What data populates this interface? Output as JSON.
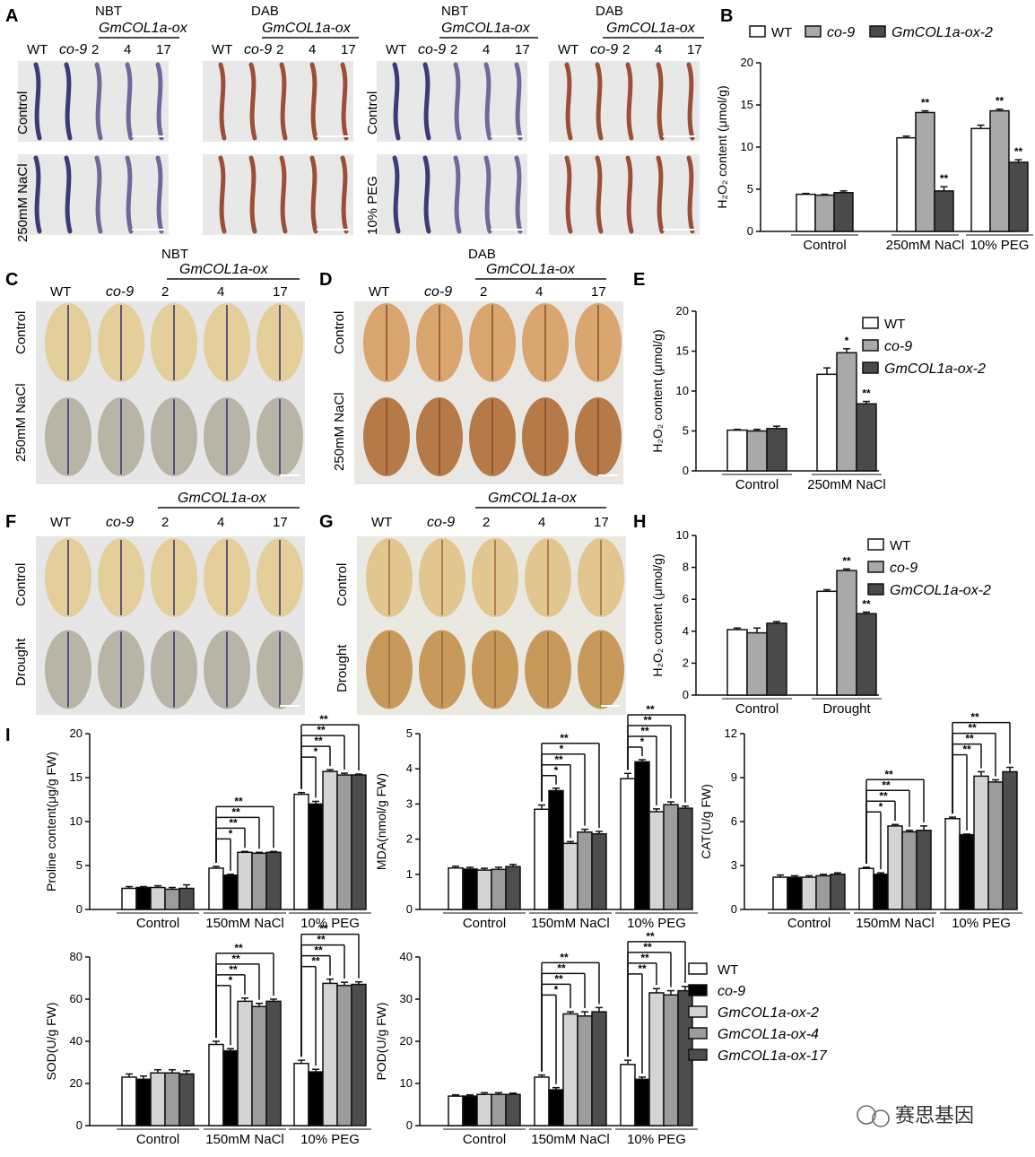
{
  "panel_labels": {
    "A": "A",
    "B": "B",
    "C": "C",
    "D": "D",
    "E": "E",
    "F": "F",
    "G": "G",
    "H": "H",
    "I": "I"
  },
  "panelA": {
    "stain_left_1": "NBT",
    "stain_left_2": "DAB",
    "stain_right_1": "NBT",
    "stain_right_2": "DAB",
    "construct": "GmCOL1a-ox",
    "genotypes": [
      "WT",
      "co-9",
      "2",
      "4",
      "17"
    ],
    "row_left": [
      "Control",
      "250mM NaCl"
    ],
    "row_right": [
      "Control",
      "10% PEG"
    ]
  },
  "panelC": {
    "stain": "NBT",
    "construct": "GmCOL1a-ox",
    "genotypes": [
      "WT",
      "co-9",
      "2",
      "4",
      "17"
    ],
    "rows": [
      "Control",
      "250mM NaCl"
    ]
  },
  "panelD": {
    "stain": "DAB",
    "construct": "GmCOL1a-ox",
    "genotypes": [
      "WT",
      "co-9",
      "2",
      "4",
      "17"
    ],
    "rows": [
      "Control",
      "250mM NaCl"
    ]
  },
  "panelF": {
    "construct": "GmCOL1a-ox",
    "genotypes": [
      "WT",
      "co-9",
      "2",
      "4",
      "17"
    ],
    "rows": [
      "Control",
      "Drought"
    ]
  },
  "panelG": {
    "construct": "GmCOL1a-ox",
    "genotypes": [
      "WT",
      "co-9",
      "2",
      "4",
      "17"
    ],
    "rows": [
      "Control",
      "Drought"
    ]
  },
  "legend3": [
    {
      "name": "WT",
      "color": "#ffffff",
      "italic": false
    },
    {
      "name": "co-9",
      "color": "#a9a9a9",
      "italic": true
    },
    {
      "name": "GmCOL1a-ox-2",
      "color": "#4a4a4a",
      "italic": true
    }
  ],
  "legend5": [
    {
      "name": "WT",
      "color": "#ffffff",
      "italic": false
    },
    {
      "name": "co-9",
      "color": "#000000",
      "italic": true
    },
    {
      "name": "GmCOL1a-ox-2",
      "color": "#d4d4d4",
      "italic": true
    },
    {
      "name": "GmCOL1a-ox-4",
      "color": "#9c9c9c",
      "italic": true
    },
    {
      "name": "GmCOL1a-ox-17",
      "color": "#4d4d4d",
      "italic": true
    }
  ],
  "watermark": "赛思基因",
  "chart_data": [
    {
      "id": "B",
      "type": "bar",
      "categories": [
        "Control",
        "250mM NaCl",
        "10% PEG"
      ],
      "ylabel": "H₂O₂ content (μmol/g)",
      "ylim": [
        0,
        20
      ],
      "yticks": [
        0,
        5,
        10,
        15,
        20
      ],
      "series": [
        {
          "name": "WT",
          "values": [
            4.4,
            11.1,
            12.2
          ],
          "err": [
            0.1,
            0.2,
            0.4
          ],
          "stars": [
            "",
            "",
            ""
          ]
        },
        {
          "name": "co-9",
          "values": [
            4.3,
            14.1,
            14.3
          ],
          "err": [
            0.1,
            0.2,
            0.2
          ],
          "stars": [
            "",
            "**",
            "**"
          ]
        },
        {
          "name": "GmCOL1a-ox-2",
          "values": [
            4.6,
            4.8,
            8.2
          ],
          "err": [
            0.2,
            0.5,
            0.3
          ],
          "stars": [
            "",
            "**",
            "**"
          ]
        }
      ]
    },
    {
      "id": "E",
      "type": "bar",
      "categories": [
        "Control",
        "250mM NaCl"
      ],
      "ylabel": "H₂O₂ content (μmol/g)",
      "ylim": [
        0,
        20
      ],
      "yticks": [
        0,
        5,
        10,
        15,
        20
      ],
      "series": [
        {
          "name": "WT",
          "values": [
            5.1,
            12.1
          ],
          "err": [
            0.1,
            0.8
          ],
          "stars": [
            "",
            ""
          ]
        },
        {
          "name": "co-9",
          "values": [
            5.0,
            14.8
          ],
          "err": [
            0.2,
            0.5
          ],
          "stars": [
            "",
            "*"
          ]
        },
        {
          "name": "GmCOL1a-ox-2",
          "values": [
            5.3,
            8.4
          ],
          "err": [
            0.3,
            0.3
          ],
          "stars": [
            "",
            "**"
          ]
        }
      ]
    },
    {
      "id": "H",
      "type": "bar",
      "categories": [
        "Control",
        "Drought"
      ],
      "ylabel": "H₂O₂ content (μmol/g)",
      "ylim": [
        0,
        10
      ],
      "yticks": [
        0,
        2,
        4,
        6,
        8,
        10
      ],
      "series": [
        {
          "name": "WT",
          "values": [
            4.1,
            6.5
          ],
          "err": [
            0.1,
            0.1
          ],
          "stars": [
            "",
            ""
          ]
        },
        {
          "name": "co-9",
          "values": [
            3.9,
            7.8
          ],
          "err": [
            0.3,
            0.1
          ],
          "stars": [
            "",
            "**"
          ]
        },
        {
          "name": "GmCOL1a-ox-2",
          "values": [
            4.5,
            5.1
          ],
          "err": [
            0.1,
            0.1
          ],
          "stars": [
            "",
            "**"
          ]
        }
      ]
    },
    {
      "id": "I1",
      "type": "bar",
      "categories": [
        "Control",
        "150mM NaCl",
        "10% PEG"
      ],
      "ylabel": "Proline content(μg/g FW)",
      "ylim": [
        0,
        20
      ],
      "yticks": [
        0,
        5,
        10,
        15,
        20
      ],
      "series": [
        {
          "name": "WT",
          "values": [
            2.4,
            4.7,
            13.1
          ],
          "err": [
            0.2,
            0.2,
            0.2
          ]
        },
        {
          "name": "co-9",
          "values": [
            2.5,
            3.9,
            12.0
          ],
          "err": [
            0.1,
            0.1,
            0.3
          ]
        },
        {
          "name": "GmCOL1a-ox-2",
          "values": [
            2.5,
            6.5,
            15.7
          ],
          "err": [
            0.2,
            0.1,
            0.2
          ]
        },
        {
          "name": "GmCOL1a-ox-4",
          "values": [
            2.3,
            6.4,
            15.3
          ],
          "err": [
            0.2,
            0.1,
            0.2
          ]
        },
        {
          "name": "GmCOL1a-ox-17",
          "values": [
            2.4,
            6.5,
            15.3
          ],
          "err": [
            0.4,
            0.1,
            0.1
          ]
        }
      ],
      "brackets": [
        [
          "*",
          "**",
          "**",
          "**"
        ],
        [
          "*",
          "**",
          "**",
          "**"
        ]
      ]
    },
    {
      "id": "I2",
      "type": "bar",
      "categories": [
        "Control",
        "150mM NaCl",
        "10% PEG"
      ],
      "ylabel": "MDA(nmol/g FW)",
      "ylim": [
        0,
        5
      ],
      "yticks": [
        0,
        1,
        2,
        3,
        4,
        5
      ],
      "series": [
        {
          "name": "WT",
          "values": [
            1.18,
            2.85,
            3.72
          ],
          "err": [
            0.05,
            0.12,
            0.15
          ]
        },
        {
          "name": "co-9",
          "values": [
            1.15,
            3.38,
            4.2
          ],
          "err": [
            0.05,
            0.07,
            0.06
          ]
        },
        {
          "name": "GmCOL1a-ox-2",
          "values": [
            1.12,
            1.88,
            2.78
          ],
          "err": [
            0.05,
            0.05,
            0.08
          ]
        },
        {
          "name": "GmCOL1a-ox-4",
          "values": [
            1.14,
            2.2,
            2.98
          ],
          "err": [
            0.06,
            0.08,
            0.08
          ]
        },
        {
          "name": "GmCOL1a-ox-17",
          "values": [
            1.22,
            2.15,
            2.88
          ],
          "err": [
            0.06,
            0.07,
            0.06
          ]
        }
      ],
      "brackets": [
        [
          "*",
          "**",
          "*",
          "**"
        ],
        [
          "*",
          "**",
          "**",
          "**"
        ]
      ]
    },
    {
      "id": "I3",
      "type": "bar",
      "categories": [
        "Control",
        "150mM NaCl",
        "10% PEG"
      ],
      "ylabel": "CAT(U/g FW)",
      "ylim": [
        0,
        12
      ],
      "yticks": [
        0,
        3,
        6,
        9,
        12
      ],
      "series": [
        {
          "name": "WT",
          "values": [
            2.2,
            2.8,
            6.2
          ],
          "err": [
            0.15,
            0.08,
            0.1
          ]
        },
        {
          "name": "co-9",
          "values": [
            2.2,
            2.4,
            5.1
          ],
          "err": [
            0.1,
            0.1,
            0.05
          ]
        },
        {
          "name": "GmCOL1a-ox-2",
          "values": [
            2.2,
            5.7,
            9.1
          ],
          "err": [
            0.1,
            0.1,
            0.3
          ]
        },
        {
          "name": "GmCOL1a-ox-4",
          "values": [
            2.3,
            5.3,
            8.7
          ],
          "err": [
            0.1,
            0.1,
            0.15
          ]
        },
        {
          "name": "GmCOL1a-ox-17",
          "values": [
            2.4,
            5.4,
            9.4
          ],
          "err": [
            0.1,
            0.3,
            0.3
          ]
        }
      ],
      "brackets": [
        [
          "*",
          "**",
          "**",
          "**"
        ],
        [
          "**",
          "**",
          "**",
          "**"
        ]
      ]
    },
    {
      "id": "I4",
      "type": "bar",
      "categories": [
        "Control",
        "150mM NaCl",
        "10% PEG"
      ],
      "ylabel": "SOD(U/g FW)",
      "ylim": [
        0,
        80
      ],
      "yticks": [
        0,
        20,
        40,
        60,
        80
      ],
      "series": [
        {
          "name": "WT",
          "values": [
            23,
            38.5,
            29.5
          ],
          "err": [
            1.5,
            1.5,
            1.5
          ]
        },
        {
          "name": "co-9",
          "values": [
            22,
            35.5,
            25.5
          ],
          "err": [
            1.5,
            1,
            1.2
          ]
        },
        {
          "name": "GmCOL1a-ox-2",
          "values": [
            25,
            59,
            67.5
          ],
          "err": [
            1.5,
            1.5,
            2
          ]
        },
        {
          "name": "GmCOL1a-ox-4",
          "values": [
            25,
            56.5,
            66.5
          ],
          "err": [
            1.5,
            1.5,
            1.5
          ]
        },
        {
          "name": "GmCOL1a-ox-17",
          "values": [
            24.5,
            59,
            67
          ],
          "err": [
            1.5,
            1,
            1.2
          ]
        }
      ],
      "brackets": [
        [
          "*",
          "**",
          "**",
          "**"
        ],
        [
          "**",
          "**",
          "**",
          "**"
        ]
      ]
    },
    {
      "id": "I5",
      "type": "bar",
      "categories": [
        "Control",
        "150mM NaCl",
        "10% PEG"
      ],
      "ylabel": "POD(U/g FW)",
      "ylim": [
        0,
        40
      ],
      "yticks": [
        0,
        10,
        20,
        30,
        40
      ],
      "series": [
        {
          "name": "WT",
          "values": [
            7,
            11.5,
            14.5
          ],
          "err": [
            0.3,
            0.5,
            1
          ]
        },
        {
          "name": "co-9",
          "values": [
            7,
            8.5,
            11
          ],
          "err": [
            0.3,
            0.5,
            0.5
          ]
        },
        {
          "name": "GmCOL1a-ox-2",
          "values": [
            7.4,
            26.5,
            31.5
          ],
          "err": [
            0.4,
            0.5,
            1
          ]
        },
        {
          "name": "GmCOL1a-ox-4",
          "values": [
            7.4,
            26,
            31
          ],
          "err": [
            0.4,
            1,
            1
          ]
        },
        {
          "name": "GmCOL1a-ox-17",
          "values": [
            7.4,
            27,
            32
          ],
          "err": [
            0.3,
            1,
            1
          ]
        }
      ],
      "brackets": [
        [
          "*",
          "**",
          "**",
          "**"
        ],
        [
          "**",
          "**",
          "**",
          "**"
        ]
      ]
    }
  ]
}
